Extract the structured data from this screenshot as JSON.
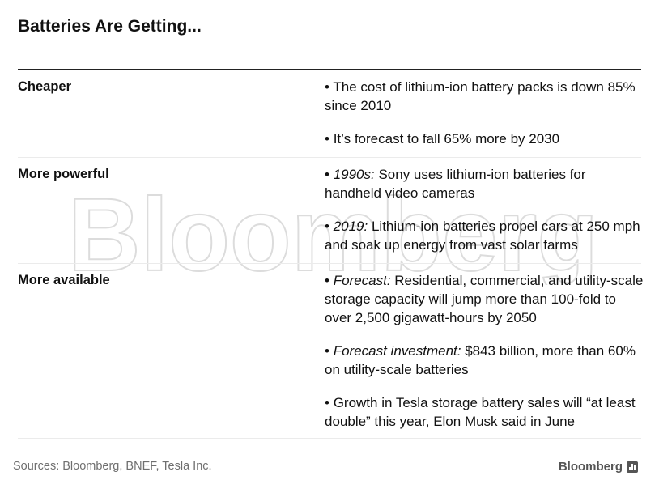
{
  "title": "Batteries Are Getting...",
  "watermark": "Bloomberg",
  "rows": [
    {
      "label": "Cheaper",
      "bullets": [
        {
          "prefix": "• ",
          "lead": "",
          "text": "The cost of lithium-ion battery packs is down 85% since 2010"
        },
        {
          "prefix": "• ",
          "lead": "",
          "text": "It’s forecast to fall 65% more by 2030"
        }
      ]
    },
    {
      "label": "More powerful",
      "bullets": [
        {
          "prefix": "• ",
          "lead": "1990s:",
          "text": " Sony uses lithium-ion batteries for handheld video cameras"
        },
        {
          "prefix": "• ",
          "lead": "2019:",
          "text": " Lithium-ion batteries propel cars at 250 mph and soak up energy from vast solar farms"
        }
      ]
    },
    {
      "label": "More available",
      "bullets": [
        {
          "prefix": "• ",
          "lead": "Forecast:",
          "text": " Residential, commercial, and utility-scale storage capacity will jump more than 100-fold to over 2,500 gigawatt-hours by 2050"
        },
        {
          "prefix": "• ",
          "lead": "Forecast investment:",
          "text": " $843 billion, more than 60% on utility-scale batteries"
        },
        {
          "prefix": "• ",
          "lead": "",
          "text": "Growth in Tesla storage battery sales will “at least double” this year, Elon Musk said in June"
        }
      ]
    }
  ],
  "source": "Sources: Bloomberg, BNEF, Tesla Inc.",
  "brand": {
    "name": "Bloomberg",
    "icon": "bar-chart-icon"
  },
  "colors": {
    "text": "#111111",
    "rule": "#222222",
    "divider": "#ebebeb",
    "source": "#6f6f6f",
    "brand": "#555555"
  }
}
